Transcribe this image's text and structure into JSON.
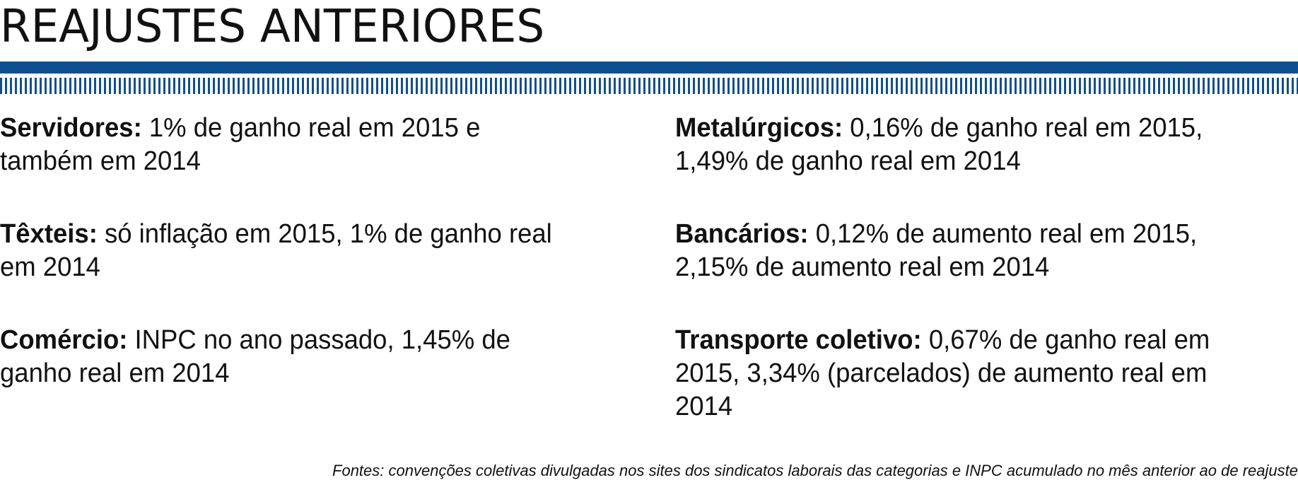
{
  "title": "REAJUSTES ANTERIORES",
  "colors": {
    "accent": "#0f4f8f",
    "text": "#111111"
  },
  "left_column": [
    {
      "label": "Servidores:",
      "line1": "1% de ganho real em 2015 e",
      "line2": "também em 2014"
    },
    {
      "label": "Têxteis:",
      "line1": "só inflação em 2015, 1% de ganho real",
      "line2": "em 2014"
    },
    {
      "label": "Comércio:",
      "line1": "INPC no ano passado, 1,45% de",
      "line2": "ganho real em 2014"
    }
  ],
  "right_column": [
    {
      "label": "Metalúrgicos:",
      "line1": "0,16% de ganho real em 2015,",
      "line2": "1,49% de ganho real em 2014"
    },
    {
      "label": "Bancários:",
      "line1": "0,12% de aumento real em 2015,",
      "line2": "2,15% de aumento real em 2014"
    },
    {
      "label": "Transporte coletivo:",
      "line1": "0,67% de ganho real em",
      "line2": "2015, 3,34% (parcelados) de aumento real em",
      "line3": "2014"
    }
  ],
  "footnote": "Fontes: convenções coletivas divulgadas nos sites dos sindicatos laborais das categorias e INPC acumulado no mês anterior ao de reajuste"
}
